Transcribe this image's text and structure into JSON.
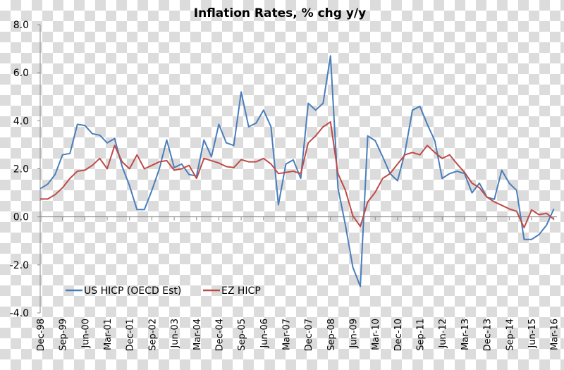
{
  "chart_data": {
    "type": "line",
    "title": "Inflation Rates, % chg y/y",
    "xlabel": "",
    "ylabel": "",
    "ylim": [
      -4,
      8
    ],
    "yticks": [
      "8.0",
      "6.0",
      "4.0",
      "2.0",
      "0.0",
      "-2.0",
      "-4.0"
    ],
    "ytick_values": [
      8,
      6,
      4,
      2,
      0,
      -2,
      -4
    ],
    "xtick_labels": [
      "Dec-98",
      "Sep-99",
      "Jun-00",
      "Mar-01",
      "Dec-01",
      "Sep-02",
      "Jun-03",
      "Mar-04",
      "Dec-04",
      "Sep-05",
      "Jun-06",
      "Mar-07",
      "Dec-07",
      "Sep-08",
      "Jun-09",
      "Mar-10",
      "Dec-10",
      "Sep-11",
      "Jun-12",
      "Mar-13",
      "Dec-13",
      "Sep-14",
      "Jun-15",
      "Mar-16"
    ],
    "x_start": "Dec-98",
    "x_end": "Mar-16",
    "x_step_months": 3,
    "grid": false,
    "legend_position": "bottom-left",
    "series": [
      {
        "name": "US HICP (OECD Est)",
        "color": "#4a7ebb",
        "values": [
          1.17,
          1.36,
          1.76,
          2.58,
          2.64,
          3.85,
          3.8,
          3.46,
          3.4,
          3.08,
          3.26,
          2.1,
          1.3,
          0.3,
          0.3,
          1.1,
          2.0,
          3.2,
          2.05,
          2.2,
          1.76,
          1.7,
          3.2,
          2.5,
          3.85,
          3.08,
          2.97,
          5.2,
          3.75,
          3.9,
          4.44,
          3.75,
          0.5,
          2.2,
          2.37,
          1.6,
          4.73,
          4.44,
          4.73,
          6.7,
          1.2,
          -0.35,
          -2.1,
          -2.9,
          3.37,
          3.17,
          2.5,
          1.8,
          1.5,
          2.68,
          4.44,
          4.6,
          3.85,
          3.17,
          1.6,
          1.8,
          1.9,
          1.8,
          1.0,
          1.4,
          0.82,
          0.73,
          1.94,
          1.4,
          1.1,
          -0.94,
          -0.94,
          -0.74,
          -0.35,
          0.33
        ]
      },
      {
        "name": "EZ HICP",
        "color": "#be4b48",
        "values": [
          0.74,
          0.74,
          0.92,
          1.21,
          1.6,
          1.9,
          1.94,
          2.14,
          2.43,
          2.0,
          2.97,
          2.29,
          2.0,
          2.58,
          2.0,
          2.14,
          2.29,
          2.34,
          1.94,
          2.0,
          2.14,
          1.6,
          2.43,
          2.34,
          2.24,
          2.09,
          2.05,
          2.38,
          2.29,
          2.29,
          2.43,
          2.2,
          1.8,
          1.85,
          1.9,
          1.8,
          3.08,
          3.37,
          3.75,
          3.95,
          1.8,
          1.1,
          0.04,
          -0.4,
          0.62,
          1.02,
          1.6,
          1.8,
          2.2,
          2.58,
          2.68,
          2.58,
          2.97,
          2.68,
          2.43,
          2.58,
          2.2,
          1.85,
          1.4,
          1.21,
          0.82,
          0.62,
          0.48,
          0.33,
          0.23,
          -0.45,
          0.29,
          0.09,
          0.15,
          -0.1
        ]
      }
    ]
  }
}
